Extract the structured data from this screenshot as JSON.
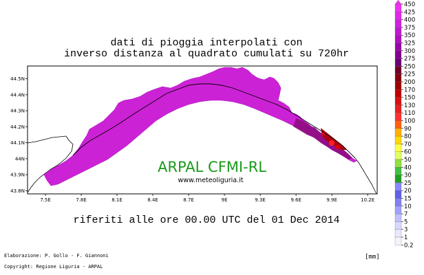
{
  "title": {
    "line1": "dati di pioggia interpolati con",
    "line2": "inverso distanza al quadrato cumulati su 720hr"
  },
  "subtitle": "riferiti alle ore 00.00 UTC del 01 Dec 2014",
  "watermark": {
    "main": "ARPAL CFMI-RL",
    "url": "www.meteoliguria.it",
    "color": "#1a9a1a"
  },
  "credits": {
    "line1": "Elaborazione: P. Gollo - F. Giannoni",
    "line2": "Copyright: Regione Liguria - ARPAL"
  },
  "unit": "[mm]",
  "map": {
    "x_ticks": [
      "7.5E",
      "7.8E",
      "8.1E",
      "8.4E",
      "8.7E",
      "9E",
      "9.3E",
      "9.6E",
      "9.9E",
      "10.2E"
    ],
    "y_ticks": [
      "44.5N",
      "44.4N",
      "44.3N",
      "44.2N",
      "44.1N",
      "44N",
      "43.9N",
      "43.8N"
    ],
    "x_range": [
      7.35,
      10.28
    ],
    "y_range": [
      43.78,
      44.58
    ],
    "region_fill": "#cc22d6",
    "region_edge": "#b018c0"
  },
  "legend": {
    "levels": [
      "450",
      "425",
      "400",
      "375",
      "350",
      "325",
      "300",
      "275",
      "250",
      "225",
      "200",
      "170",
      "150",
      "130",
      "110",
      "100",
      "90",
      "80",
      "70",
      "60",
      "50",
      "40",
      "30",
      "25",
      "20",
      "15",
      "10",
      "7",
      "5",
      "3",
      "1",
      "0.2"
    ],
    "colors": [
      "#f030f0",
      "#e028e8",
      "#d020e0",
      "#c018d0",
      "#b010c0",
      "#9808a8",
      "#800090",
      "#6a0078",
      "#700028",
      "#880010",
      "#a00000",
      "#c00000",
      "#d81010",
      "#e82020",
      "#ff3030",
      "#ff6010",
      "#ffb000",
      "#ffd800",
      "#ffff40",
      "#e0ff60",
      "#90e040",
      "#40c040",
      "#20a020",
      "#8888ff",
      "#6060e8",
      "#8080f0",
      "#a0a0ff",
      "#c0c0ff",
      "#d8d8ff",
      "#e8e8ff",
      "#f4f4ff"
    ]
  }
}
